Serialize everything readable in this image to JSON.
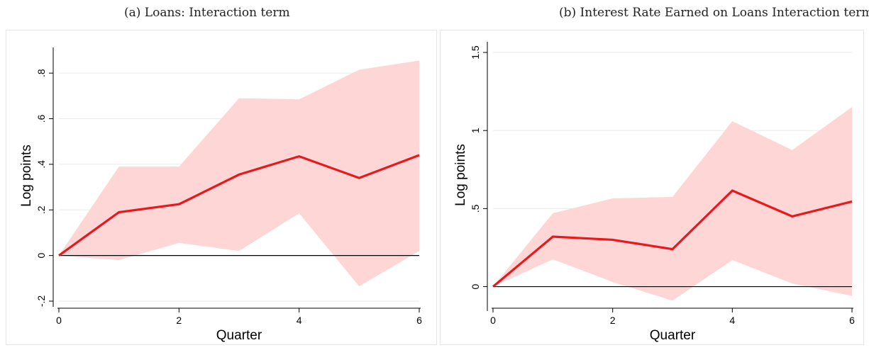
{
  "chart_data": [
    {
      "type": "line",
      "title": "(a) Loans: Interaction term",
      "xlabel": "Quarter",
      "ylabel": "Log points",
      "x": [
        0,
        1,
        2,
        3,
        4,
        5,
        6
      ],
      "xticks": [
        0,
        2,
        4,
        6
      ],
      "xtick_labels": [
        "0",
        "2",
        "4",
        "6"
      ],
      "xlim": [
        0,
        6
      ],
      "ylim": [
        -0.2,
        0.9
      ],
      "yticks": [
        -0.2,
        0,
        0.2,
        0.4,
        0.6,
        0.8
      ],
      "ytick_labels": [
        "-.2",
        "0",
        ".2",
        ".4",
        ".6",
        ".8"
      ],
      "series": [
        {
          "values": [
            0,
            0.19,
            0.225,
            0.355,
            0.435,
            0.34,
            0.44
          ],
          "color": "#e8191c"
        }
      ],
      "band": {
        "lower": [
          0,
          -0.02,
          0.055,
          0.02,
          0.185,
          -0.135,
          0.02
        ],
        "upper": [
          0,
          0.39,
          0.39,
          0.69,
          0.685,
          0.815,
          0.855
        ],
        "color": "#ffd6d6"
      },
      "reference_line": 0,
      "grid": true
    },
    {
      "type": "line",
      "title": "(b) Interest Rate Earned on Loans Interaction term",
      "xlabel": "Quarter",
      "ylabel": "Log points",
      "x": [
        0,
        1,
        2,
        3,
        4,
        5,
        6
      ],
      "xticks": [
        0,
        2,
        4,
        6
      ],
      "xtick_labels": [
        "0",
        "2",
        "4",
        "6"
      ],
      "xlim": [
        0,
        6
      ],
      "ylim": [
        -0.12,
        1.55
      ],
      "yticks": [
        0,
        0.5,
        1,
        1.5
      ],
      "ytick_labels": [
        "0",
        ".5",
        "1",
        "1.5"
      ],
      "series": [
        {
          "values": [
            0,
            0.32,
            0.3,
            0.24,
            0.615,
            0.45,
            0.545
          ],
          "color": "#e8191c"
        }
      ],
      "band": {
        "lower": [
          0,
          0.175,
          0.03,
          -0.09,
          0.17,
          0.02,
          -0.06
        ],
        "upper": [
          0,
          0.47,
          0.565,
          0.575,
          1.06,
          0.875,
          1.15
        ],
        "color": "#ffd6d6"
      },
      "reference_line": 0,
      "grid": true
    }
  ]
}
